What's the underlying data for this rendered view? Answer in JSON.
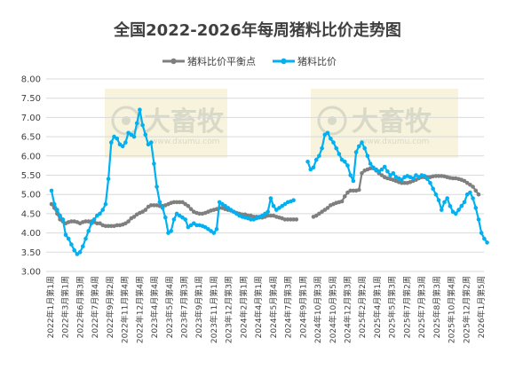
{
  "chart_data": {
    "type": "line",
    "title": "全国2022-2026年每周猪料比价走势图",
    "ylim": [
      3.0,
      8.0
    ],
    "yticks": [
      "8.00",
      "7.50",
      "7.00",
      "6.50",
      "6.00",
      "5.50",
      "5.00",
      "4.50",
      "4.00",
      "3.50",
      "3.00"
    ],
    "grid": "horizontal",
    "legend_position": "top",
    "x_tick_labels": [
      "2022年1月第1周",
      "2022年3月第1周",
      "2022年6月第3周",
      "2022年7月第4周",
      "2022年9月第2周",
      "2022年11月第4周",
      "2022年12月第4周",
      "2023年4月第4周",
      "2023年5月第4周",
      "2023年7月第3周",
      "2023年9月第1周",
      "2023年11月第1周",
      "2023年12月第3周",
      "2024年2月第1周",
      "2024年4月第1周",
      "2024年5月第4周",
      "2024年7月第3周",
      "2024年9月第1周",
      "2024年10月第3周",
      "2024年10月第5周",
      "2024年12月第3周",
      "2025年2月第2周",
      "2025年4月第1周",
      "2025年5月第3周",
      "2025年7月第2周",
      "2025年7月第3周",
      "2025年8月第3周",
      "2025年10月第4周",
      "2025年12月第2周",
      "2026年1月第5周"
    ],
    "watermark": {
      "brand": "大畜牧",
      "url": "www.dxumu.com"
    },
    "series": [
      {
        "name": "猪料比价平衡点",
        "color": "#7f7f7f",
        "values": [
          4.75,
          4.65,
          4.5,
          4.35,
          4.3,
          4.25,
          4.28,
          4.3,
          4.3,
          4.28,
          4.25,
          4.28,
          4.3,
          4.3,
          4.3,
          4.28,
          4.25,
          4.25,
          4.2,
          4.18,
          4.18,
          4.18,
          4.18,
          4.2,
          4.2,
          4.22,
          4.25,
          4.3,
          4.38,
          4.42,
          4.48,
          4.52,
          4.55,
          4.6,
          4.68,
          4.72,
          4.72,
          4.72,
          4.7,
          4.7,
          4.72,
          4.75,
          4.78,
          4.8,
          4.8,
          4.8,
          4.8,
          4.75,
          4.7,
          4.62,
          4.55,
          4.52,
          4.5,
          4.5,
          4.52,
          4.55,
          4.58,
          4.6,
          4.62,
          4.65,
          4.65,
          4.62,
          4.6,
          4.58,
          4.55,
          4.52,
          4.5,
          4.48,
          4.48,
          4.45,
          4.45,
          4.42,
          4.42,
          4.4,
          4.4,
          4.42,
          4.45,
          4.45,
          4.45,
          4.42,
          4.4,
          4.38,
          4.35,
          4.35,
          4.35,
          4.35,
          4.35,
          null,
          null,
          null,
          null,
          null,
          4.42,
          4.45,
          4.5,
          4.55,
          4.6,
          4.65,
          4.72,
          4.75,
          4.78,
          4.8,
          4.82,
          4.95,
          5.05,
          5.1,
          5.1,
          5.1,
          5.12,
          5.55,
          5.62,
          5.65,
          5.68,
          5.68,
          5.62,
          5.55,
          5.5,
          5.45,
          5.42,
          5.4,
          5.38,
          5.35,
          5.32,
          5.3,
          5.3,
          5.3,
          5.32,
          5.35,
          5.38,
          5.42,
          5.45,
          5.45,
          5.45,
          5.45,
          5.47,
          5.48,
          5.48,
          5.48,
          5.47,
          5.45,
          5.43,
          5.42,
          5.42,
          5.4,
          5.38,
          5.35,
          5.3,
          5.25,
          5.2,
          5.1,
          5.0
        ]
      },
      {
        "name": "猪料比价",
        "color": "#00b0f0",
        "values": [
          5.1,
          4.75,
          4.6,
          4.45,
          4.35,
          3.95,
          3.85,
          3.7,
          3.55,
          3.45,
          3.5,
          3.65,
          3.85,
          4.05,
          4.25,
          4.35,
          4.45,
          4.5,
          4.6,
          4.75,
          5.4,
          6.35,
          6.5,
          6.45,
          6.3,
          6.25,
          6.35,
          6.6,
          6.55,
          6.5,
          6.85,
          7.2,
          6.8,
          6.55,
          6.3,
          6.35,
          5.8,
          5.2,
          4.8,
          4.65,
          4.4,
          4.0,
          4.05,
          4.35,
          4.5,
          4.45,
          4.4,
          4.35,
          4.15,
          4.2,
          4.25,
          4.2,
          4.2,
          4.18,
          4.15,
          4.1,
          4.05,
          4.0,
          4.1,
          4.8,
          4.75,
          4.7,
          4.65,
          4.6,
          4.55,
          4.5,
          4.45,
          4.42,
          4.4,
          4.38,
          4.35,
          4.35,
          4.38,
          4.42,
          4.45,
          4.5,
          4.55,
          4.9,
          4.7,
          4.6,
          4.65,
          4.7,
          4.75,
          4.8,
          4.82,
          4.85,
          null,
          null,
          null,
          null,
          5.85,
          5.65,
          5.7,
          5.9,
          6.0,
          6.2,
          6.55,
          6.6,
          6.45,
          6.35,
          6.2,
          6.05,
          5.9,
          5.85,
          5.75,
          5.5,
          5.35,
          6.1,
          6.25,
          6.35,
          6.2,
          6.0,
          5.8,
          5.7,
          5.65,
          5.6,
          5.65,
          5.72,
          5.6,
          5.5,
          5.55,
          5.45,
          5.42,
          5.38,
          5.45,
          5.48,
          5.45,
          5.42,
          5.5,
          5.45,
          5.5,
          5.48,
          5.4,
          5.3,
          5.15,
          5.0,
          4.85,
          4.6,
          4.8,
          4.9,
          4.7,
          4.55,
          4.5,
          4.6,
          4.7,
          4.8,
          5.0,
          5.05,
          4.9,
          4.65,
          4.35,
          4.0,
          3.85,
          3.75
        ]
      }
    ]
  }
}
